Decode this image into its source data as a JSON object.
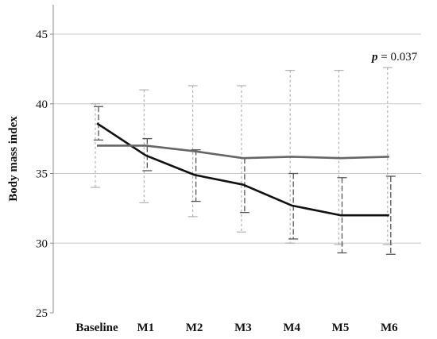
{
  "chart_data": {
    "type": "line",
    "title": "",
    "xlabel": "",
    "ylabel": "Body mass index",
    "categories": [
      "Baseline",
      "M1",
      "M2",
      "M3",
      "M4",
      "M5",
      "M6"
    ],
    "ylim": [
      25,
      47
    ],
    "yticks": [
      25,
      30,
      35,
      40,
      45
    ],
    "grid": true,
    "annotation": {
      "italic": "p",
      "rest": " = 0.037"
    },
    "series": [
      {
        "color": "#111111",
        "values": [
          38.6,
          36.3,
          34.9,
          34.2,
          32.7,
          32.0,
          32.0
        ],
        "err_low": [
          37.4,
          35.2,
          33.0,
          32.2,
          30.3,
          29.3,
          29.2
        ],
        "err_high": [
          39.8,
          37.5,
          36.7,
          36.1,
          35.0,
          34.7,
          34.8
        ]
      },
      {
        "color": "#666666",
        "values": [
          37.0,
          37.0,
          36.6,
          36.1,
          36.2,
          36.1,
          36.2
        ],
        "err_low": [
          34.0,
          32.9,
          31.9,
          30.8,
          30.0,
          29.9,
          29.9
        ],
        "err_high": [
          40.0,
          41.0,
          41.3,
          41.3,
          42.4,
          42.4,
          42.6
        ]
      }
    ]
  }
}
